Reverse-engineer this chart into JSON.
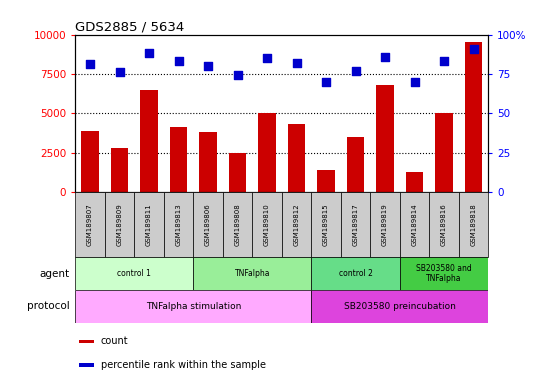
{
  "title": "GDS2885 / 5634",
  "samples": [
    "GSM189807",
    "GSM189809",
    "GSM189811",
    "GSM189813",
    "GSM189806",
    "GSM189808",
    "GSM189810",
    "GSM189812",
    "GSM189815",
    "GSM189817",
    "GSM189819",
    "GSM189814",
    "GSM189816",
    "GSM189818"
  ],
  "counts": [
    3900,
    2800,
    6500,
    4100,
    3800,
    2500,
    5000,
    4300,
    1400,
    3500,
    6800,
    1300,
    5000,
    9500
  ],
  "percentiles": [
    81,
    76,
    88,
    83,
    80,
    74,
    85,
    82,
    70,
    77,
    86,
    70,
    83,
    91
  ],
  "bar_color": "#cc0000",
  "dot_color": "#0000cc",
  "ylim_left": [
    0,
    10000
  ],
  "ylim_right": [
    0,
    100
  ],
  "yticks_left": [
    0,
    2500,
    5000,
    7500,
    10000
  ],
  "yticks_right": [
    0,
    25,
    50,
    75,
    100
  ],
  "yticklabels_left": [
    "0",
    "2500",
    "5000",
    "7500",
    "10000"
  ],
  "yticklabels_right": [
    "0",
    "25",
    "50",
    "75",
    "100%"
  ],
  "agent_groups": [
    {
      "label": "control 1",
      "start": 0,
      "end": 4,
      "color": "#ccffcc"
    },
    {
      "label": "TNFalpha",
      "start": 4,
      "end": 8,
      "color": "#99ee99"
    },
    {
      "label": "control 2",
      "start": 8,
      "end": 11,
      "color": "#66dd88"
    },
    {
      "label": "SB203580 and\nTNFalpha",
      "start": 11,
      "end": 14,
      "color": "#44cc44"
    }
  ],
  "protocol_groups": [
    {
      "label": "TNFalpha stimulation",
      "start": 0,
      "end": 8,
      "color": "#ffaaff"
    },
    {
      "label": "SB203580 preincubation",
      "start": 8,
      "end": 14,
      "color": "#dd44dd"
    }
  ],
  "legend_items": [
    {
      "color": "#cc0000",
      "marker": "s",
      "label": "count"
    },
    {
      "color": "#0000cc",
      "marker": "s",
      "label": "percentile rank within the sample"
    }
  ],
  "agent_label": "agent",
  "protocol_label": "protocol",
  "sample_bgcolor": "#cccccc",
  "dotted_line_color": "#000000"
}
